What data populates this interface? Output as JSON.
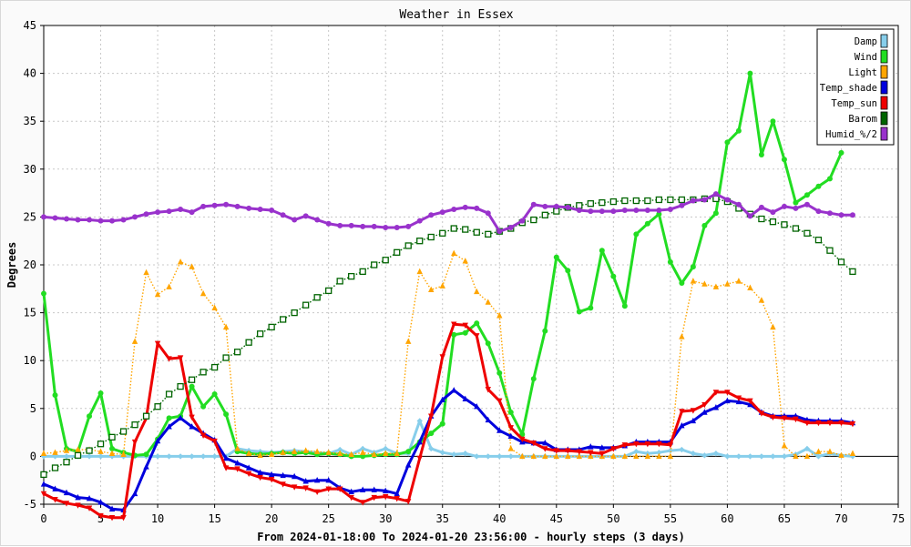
{
  "chart_data": {
    "type": "line",
    "title": "Weather in Essex",
    "xlabel": "From 2024-01-18:00 To 2024-01-20 23:56:00 - hourly steps (3 days)",
    "ylabel": "Degrees",
    "xlim": [
      0,
      75
    ],
    "ylim": [
      -5,
      45
    ],
    "xticks": [
      0,
      5,
      10,
      15,
      20,
      25,
      30,
      35,
      40,
      45,
      50,
      55,
      60,
      65,
      70,
      75
    ],
    "yticks": [
      -5,
      0,
      5,
      10,
      15,
      20,
      25,
      30,
      35,
      40,
      45
    ],
    "grid": true,
    "legend_position": "top-right",
    "x": [
      0,
      1,
      2,
      3,
      4,
      5,
      6,
      7,
      8,
      9,
      10,
      11,
      12,
      13,
      14,
      15,
      16,
      17,
      18,
      19,
      20,
      21,
      22,
      23,
      24,
      25,
      26,
      27,
      28,
      29,
      30,
      31,
      32,
      33,
      34,
      35,
      36,
      37,
      38,
      39,
      40,
      41,
      42,
      43,
      44,
      45,
      46,
      47,
      48,
      49,
      50,
      51,
      52,
      53,
      54,
      55,
      56,
      57,
      58,
      59,
      60,
      61,
      62,
      63,
      64,
      65,
      66,
      67,
      68,
      69,
      70,
      71
    ],
    "series": [
      {
        "name": "Damp",
        "color": "#87ceeb",
        "style": "solid",
        "marker": "diamond",
        "values": [
          0,
          0,
          0,
          0,
          0,
          0,
          0,
          0,
          0,
          0,
          0,
          0,
          0,
          0,
          0,
          0,
          0,
          0.8,
          0.6,
          0.5,
          0.4,
          0.5,
          0.6,
          0.5,
          0.4,
          0.3,
          0.7,
          0.2,
          0.8,
          0.4,
          0.8,
          0.3,
          0.3,
          3.7,
          0.8,
          0.4,
          0.2,
          0.3,
          0,
          0,
          0,
          0,
          0,
          0,
          0,
          0,
          0,
          0,
          0,
          0,
          0,
          0,
          0.5,
          0.3,
          0.4,
          0.6,
          0.7,
          0.3,
          0.1,
          0.3,
          0,
          0,
          0,
          0,
          0,
          0,
          0.2,
          0.8,
          0,
          0.3,
          0.1,
          0
        ]
      },
      {
        "name": "Wind",
        "color": "#22dd22",
        "style": "solid",
        "marker": "circle",
        "values": [
          17.0,
          6.4,
          0.8,
          0.5,
          4.2,
          6.6,
          0.8,
          0.4,
          0.1,
          0.2,
          1.8,
          4.0,
          4.2,
          7.3,
          5.2,
          6.5,
          4.4,
          0.5,
          0.3,
          0.2,
          0.3,
          0.4,
          0.3,
          0.4,
          0.2,
          0.3,
          0.2,
          0.0,
          0.0,
          0.1,
          0.2,
          0.2,
          0.5,
          1.5,
          2.4,
          3.4,
          12.7,
          12.9,
          13.9,
          11.8,
          8.7,
          4.6,
          2.3,
          8.1,
          13.1,
          20.8,
          19.4,
          15.1,
          15.5,
          21.5,
          18.8,
          15.7,
          23.2,
          24.3,
          25.3,
          20.3,
          18.1,
          19.8,
          24.1,
          25.4,
          32.8,
          34.0,
          40.0,
          31.5,
          35.0,
          31.0,
          26.5,
          27.3,
          28.2,
          29.0,
          31.7,
          null
        ]
      },
      {
        "name": "Light",
        "color": "#ffa500",
        "style": "dotted",
        "marker": "triangle",
        "values": [
          0.3,
          0.4,
          0.6,
          0.7,
          0.7,
          0.5,
          0.3,
          0.2,
          12.0,
          19.2,
          16.9,
          17.7,
          20.3,
          19.8,
          17.0,
          15.5,
          13.5,
          0.8,
          0.3,
          0.1,
          0.2,
          0.4,
          0.5,
          0.6,
          0.5,
          0.4,
          0.3,
          0.2,
          0.4,
          0.2,
          0.3,
          0.3,
          12.0,
          19.3,
          17.4,
          17.8,
          21.2,
          20.4,
          17.2,
          16.1,
          14.7,
          0.8,
          0.0,
          0.0,
          0.0,
          0.0,
          0.0,
          0.0,
          0.0,
          0.0,
          0.0,
          0.0,
          0.0,
          0.0,
          0.0,
          0.0,
          12.5,
          18.3,
          18.0,
          17.7,
          18.0,
          18.3,
          17.6,
          16.3,
          13.5,
          1.1,
          0.0,
          0.0,
          0.5,
          0.5,
          0.1,
          0.3
        ]
      },
      {
        "name": "Temp_shade",
        "color": "#0000dd",
        "style": "solid",
        "marker": "triangle",
        "values": [
          -2.9,
          -3.4,
          -3.8,
          -4.3,
          -4.4,
          -4.8,
          -5.5,
          -5.6,
          -3.9,
          -1.1,
          1.6,
          3.1,
          4.0,
          3.1,
          2.4,
          1.7,
          -0.2,
          -0.7,
          -1.2,
          -1.7,
          -1.9,
          -2.0,
          -2.1,
          -2.6,
          -2.5,
          -2.5,
          -3.3,
          -3.7,
          -3.5,
          -3.5,
          -3.6,
          -3.9,
          -0.9,
          1.5,
          4.2,
          5.9,
          6.9,
          6.0,
          5.2,
          3.8,
          2.7,
          2.1,
          1.5,
          1.4,
          1.4,
          0.7,
          0.7,
          0.7,
          1.0,
          0.9,
          0.9,
          1.1,
          1.5,
          1.5,
          1.5,
          1.5,
          3.2,
          3.7,
          4.6,
          5.1,
          5.8,
          5.7,
          5.4,
          4.6,
          4.2,
          4.2,
          4.2,
          3.8,
          3.7,
          3.7,
          3.7,
          3.5
        ]
      },
      {
        "name": "Temp_sun",
        "color": "#ee0000",
        "style": "solid",
        "marker": "triangle-down",
        "values": [
          -3.9,
          -4.5,
          -4.9,
          -5.1,
          -5.4,
          -6.2,
          -6.4,
          -6.4,
          1.5,
          4.0,
          11.8,
          10.2,
          10.3,
          4.1,
          2.2,
          1.6,
          -1.2,
          -1.3,
          -1.8,
          -2.2,
          -2.4,
          -2.9,
          -3.2,
          -3.3,
          -3.7,
          -3.4,
          -3.4,
          -4.3,
          -4.8,
          -4.3,
          -4.2,
          -4.4,
          -4.7,
          -0.2,
          4.2,
          10.4,
          13.8,
          13.7,
          12.6,
          7.0,
          5.8,
          3.0,
          1.8,
          1.4,
          0.8,
          0.6,
          0.6,
          0.5,
          0.4,
          0.3,
          0.8,
          1.2,
          1.3,
          1.3,
          1.3,
          1.2,
          4.7,
          4.8,
          5.4,
          6.7,
          6.7,
          6.1,
          5.8,
          4.5,
          4.1,
          4.0,
          3.9,
          3.5,
          3.5,
          3.5,
          3.5,
          3.4
        ]
      },
      {
        "name": "Barom",
        "color": "#006400",
        "style": "dotted",
        "marker": "square",
        "values": [
          -1.9,
          -1.2,
          -0.6,
          0.1,
          0.6,
          1.3,
          2.0,
          2.6,
          3.3,
          4.2,
          5.2,
          6.5,
          7.3,
          8.0,
          8.8,
          9.3,
          10.3,
          10.9,
          11.9,
          12.8,
          13.5,
          14.3,
          15.0,
          15.8,
          16.6,
          17.3,
          18.3,
          18.8,
          19.3,
          20.0,
          20.5,
          21.3,
          22.0,
          22.5,
          22.9,
          23.3,
          23.8,
          23.7,
          23.4,
          23.2,
          23.5,
          23.8,
          24.4,
          24.7,
          25.2,
          25.6,
          26.0,
          26.2,
          26.4,
          26.5,
          26.6,
          26.7,
          26.7,
          26.7,
          26.8,
          26.8,
          26.8,
          26.8,
          26.9,
          26.9,
          26.6,
          25.9,
          25.3,
          24.8,
          24.5,
          24.2,
          23.8,
          23.3,
          22.6,
          21.5,
          20.3,
          19.3
        ]
      },
      {
        "name": "Humid_%/2",
        "color": "#9932cc",
        "style": "solid",
        "marker": "circle",
        "values": [
          25.0,
          24.9,
          24.8,
          24.7,
          24.7,
          24.6,
          24.6,
          24.7,
          25.0,
          25.3,
          25.5,
          25.6,
          25.8,
          25.5,
          26.1,
          26.2,
          26.3,
          26.1,
          25.9,
          25.8,
          25.7,
          25.2,
          24.7,
          25.1,
          24.7,
          24.3,
          24.1,
          24.1,
          24.0,
          24.0,
          23.9,
          23.9,
          24.0,
          24.6,
          25.2,
          25.5,
          25.8,
          26.0,
          25.9,
          25.4,
          23.5,
          23.9,
          24.6,
          26.3,
          26.1,
          26.1,
          26.0,
          25.7,
          25.6,
          25.6,
          25.6,
          25.7,
          25.7,
          25.7,
          25.7,
          25.8,
          26.2,
          26.7,
          26.8,
          27.4,
          26.8,
          26.3,
          25.1,
          26.0,
          25.5,
          26.1,
          25.9,
          26.3,
          25.6,
          25.4,
          25.2,
          25.2
        ]
      }
    ]
  }
}
